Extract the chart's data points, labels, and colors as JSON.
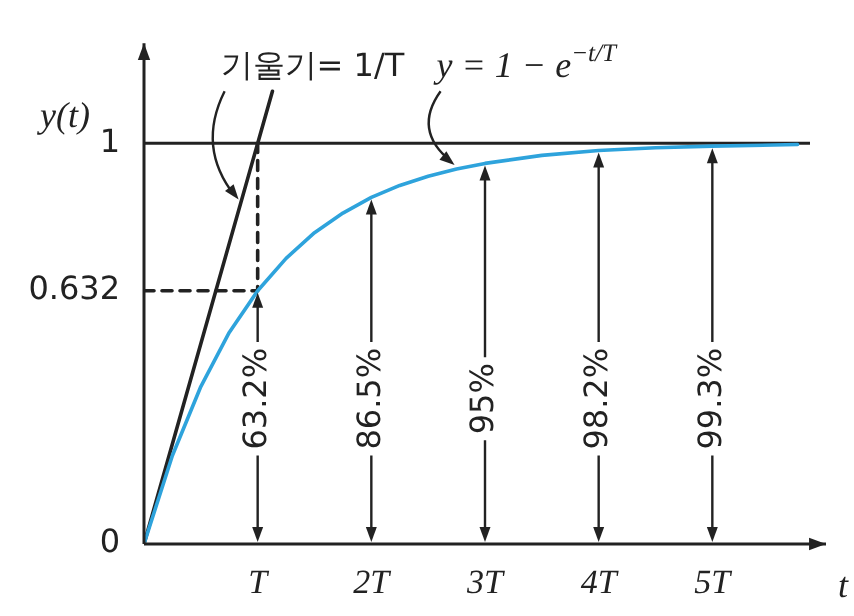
{
  "chart_data": {
    "type": "line",
    "xlabel": "t",
    "ylabel": "y(t)",
    "xlim": [
      0,
      6
    ],
    "ylim": [
      0,
      1.25
    ],
    "xticks": [
      {
        "value": 1,
        "label": "T"
      },
      {
        "value": 2,
        "label": "2T"
      },
      {
        "value": 3,
        "label": "3T"
      },
      {
        "value": 4,
        "label": "4T"
      },
      {
        "value": 5,
        "label": "5T"
      }
    ],
    "yticks": [
      0,
      0.632,
      1
    ],
    "series": [
      {
        "color": "#2ea3dc",
        "x": [
          0,
          0.25,
          0.5,
          0.75,
          1,
          1.25,
          1.5,
          1.75,
          2,
          2.25,
          2.5,
          2.75,
          3,
          3.5,
          4,
          4.5,
          5,
          5.75
        ],
        "values": [
          0,
          0.221,
          0.393,
          0.528,
          0.632,
          0.713,
          0.777,
          0.826,
          0.865,
          0.895,
          0.918,
          0.936,
          0.95,
          0.97,
          0.982,
          0.989,
          0.993,
          0.997
        ]
      },
      {
        "color": "#222222",
        "x": [
          0,
          1.13
        ],
        "values": [
          0,
          1.13
        ]
      },
      {
        "color": "#222222",
        "line_style": "dashed",
        "x": [
          0,
          1,
          1
        ],
        "values": [
          0.632,
          0.632,
          1
        ]
      }
    ],
    "ref_lines": [
      {
        "axis": "y",
        "value": 1,
        "color": "#222222"
      }
    ],
    "annotations": [
      {
        "text": "기울기= 1/T",
        "x": 0.85,
        "y": 0.85
      },
      {
        "text": "y = 1 − e$^{−t/T}$",
        "x": 2.75,
        "y": 0.936
      },
      {
        "text": "63.2%",
        "x": 1,
        "y": 0.632
      },
      {
        "text": "86.5%",
        "x": 2,
        "y": 0.865
      },
      {
        "text": "95%",
        "x": 3,
        "y": 0.95
      },
      {
        "text": "98.2%",
        "x": 4,
        "y": 0.982
      },
      {
        "text": "99.3%",
        "x": 5,
        "y": 0.993
      }
    ],
    "marker": "none",
    "line_style": "solid",
    "grid": false,
    "legend": false
  }
}
